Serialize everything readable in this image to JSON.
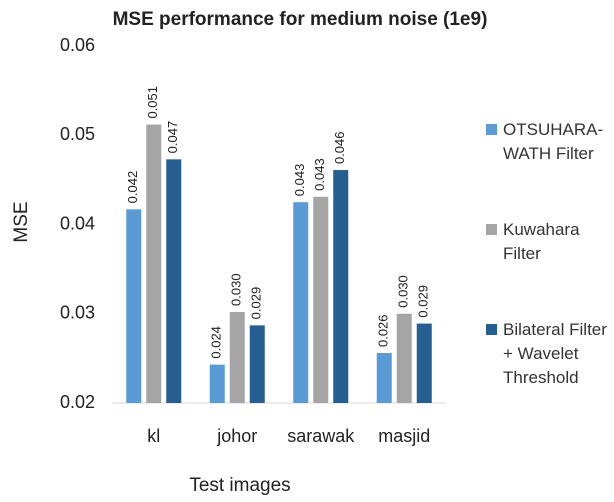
{
  "chart_data": {
    "type": "bar",
    "title": "MSE performance for medium noise (1e9)",
    "x_label": "Test images",
    "y_label": "MSE",
    "categories": [
      "kl",
      "johor",
      "sarawak",
      "masjid"
    ],
    "series": [
      {
        "name": "OTSUHARA-WATH Filter",
        "color": "#5b9bd5",
        "values": [
          0.0417,
          0.0243,
          0.0425,
          0.0256
        ],
        "value_labels": [
          "0.042",
          "0.024",
          "0.043",
          "0.026"
        ]
      },
      {
        "name": "Kuwahara Filter",
        "color": "#a5a5a5",
        "values": [
          0.0512,
          0.0302,
          0.0431,
          0.03
        ],
        "value_labels": [
          "0.051",
          "0.030",
          "0.043",
          "0.030"
        ]
      },
      {
        "name": "Bilateral Filter + Wavelet Threshold",
        "color": "#255e91",
        "values": [
          0.0473,
          0.0287,
          0.0461,
          0.0289
        ],
        "value_labels": [
          "0.047",
          "0.029",
          "0.046",
          "0.029"
        ]
      }
    ],
    "ylim": [
      0.02,
      0.06
    ],
    "yticks": [
      0.02,
      0.03,
      0.04,
      0.05,
      0.06
    ],
    "grid": false,
    "legend": "right"
  }
}
